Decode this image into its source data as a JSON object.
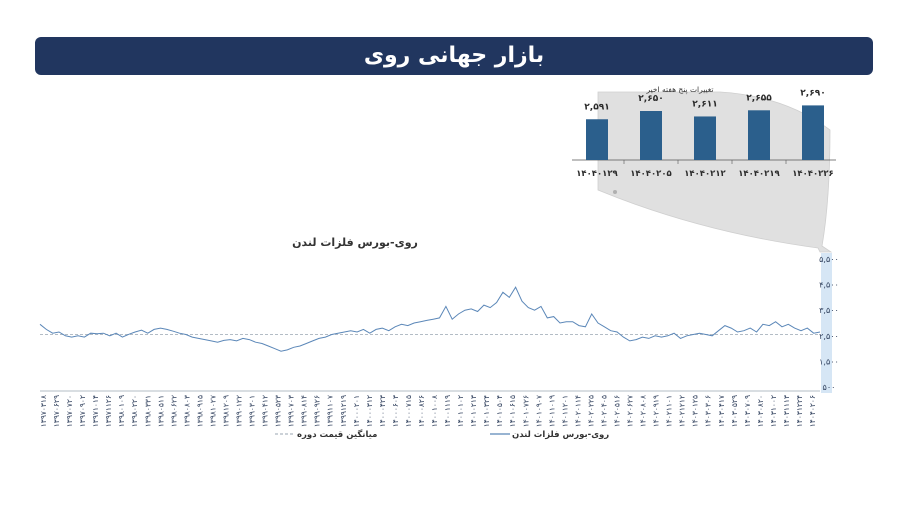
{
  "header": {
    "title": "بازار جهانی روی"
  },
  "inset": {
    "title": "تغییرات پنج هفته اخیر",
    "bar_color": "#2b5f8c",
    "background_color": "#e0e0e0"
  },
  "main_chart": {
    "title": "روی-بورس فلزات لندن",
    "line_color": "#5b87b8",
    "avg_color": "#9aa6b2",
    "legend": {
      "series_label": "روی-بورس فلزات لندن",
      "avg_label": "میانگین قیمت دوره"
    }
  },
  "chart_data": [
    {
      "type": "bar",
      "title": "تغییرات پنج هفته اخیر",
      "categories": [
        "۱۴۰۴۰۱۲۹",
        "۱۴۰۴۰۲۰۵",
        "۱۴۰۴۰۲۱۲",
        "۱۴۰۴۰۲۱۹",
        "۱۴۰۴۰۲۲۶"
      ],
      "values": [
        2591,
        2650,
        2611,
        2655,
        2690
      ],
      "value_labels": [
        "۲,۵۹۱",
        "۲,۶۵۰",
        "۲,۶۱۱",
        "۲,۶۵۵",
        "۲,۶۹۰"
      ],
      "ylim": [
        2300,
        2700
      ]
    },
    {
      "type": "line",
      "title": "روی-بورس فلزات لندن",
      "ylim": [
        500,
        5500
      ],
      "yticks": [
        500,
        1500,
        2500,
        3500,
        4500,
        5500
      ],
      "ytick_labels": [
        "۵۰۰",
        "۱,۵۰۰",
        "۲,۵۰۰",
        "۳,۵۰۰",
        "۴,۵۰۰",
        "۵,۵۰۰"
      ],
      "x_tick_labels": [
        "۱۳۹۷۰۳۱۸",
        "۱۳۹۷۰۶۲۹",
        "۱۳۹۷۰۷۲۰",
        "۱۳۹۷۰۹۰۲",
        "۱۳۹۷۱۰۱۴",
        "۱۳۹۷۱۱۲۶",
        "۱۳۹۸۰۱۰۹",
        "۱۳۹۸۰۲۲۰",
        "۱۳۹۸۰۳۳۱",
        "۱۳۹۸۰۵۱۱",
        "۱۳۹۸۰۶۲۲",
        "۱۳۹۸۰۸۰۳",
        "۱۳۹۸۰۹۱۵",
        "۱۳۹۸۱۰۲۷",
        "۱۳۹۸۱۲۰۹",
        "۱۳۹۹۰۱۲۲",
        "۱۳۹۹۰۳۰۱",
        "۱۳۹۹۰۴۱۲",
        "۱۳۹۹۰۵۲۳",
        "۱۳۹۹۰۷۰۳",
        "۱۳۹۹۰۸۱۴",
        "۱۳۹۹۰۹۲۶",
        "۱۳۹۹۱۱۰۷",
        "۱۳۹۹۱۲۱۹",
        "۱۴۰۰۰۲۰۱",
        "۱۴۰۰۰۳۱۲",
        "۱۴۰۰۰۴۲۳",
        "۱۴۰۰۰۶۰۳",
        "۱۴۰۰۰۷۱۵",
        "۱۴۰۰۰۸۲۶",
        "۱۴۰۰۱۰۰۸",
        "۱۴۰۰۱۱۱۹",
        "۱۴۰۱۰۱۰۲",
        "۱۴۰۱۰۲۱۳",
        "۱۴۰۱۰۳۲۴",
        "۱۴۰۱۰۵۰۴",
        "۱۴۰۱۰۶۱۵",
        "۱۴۰۱۰۷۲۶",
        "۱۴۰۱۰۹۰۷",
        "۱۴۰۱۱۰۱۹",
        "۱۴۰۱۱۲۰۱",
        "۱۴۰۲۰۱۱۴",
        "۱۴۰۲۰۲۲۵",
        "۱۴۰۲۰۴۰۵",
        "۱۴۰۲۰۵۱۶",
        "۱۴۰۲۰۶۲۷",
        "۱۴۰۲۰۸۰۸",
        "۱۴۰۲۰۹۱۹",
        "۱۴۰۲۱۱۰۱",
        "۱۴۰۲۱۲۱۲",
        "۱۴۰۳۰۱۲۵",
        "۱۴۰۳۰۳۰۶",
        "۱۴۰۳۰۴۱۷",
        "۱۴۰۳۰۵۲۹",
        "۱۴۰۳۰۷۰۹",
        "۱۴۰۳۰۸۲۰",
        "۱۴۰۳۱۰۰۲",
        "۱۴۰۳۱۱۱۳",
        "۱۴۰۳۱۲۲۴",
        "۱۴۰۴۰۲۰۶"
      ],
      "avg_value": 2550,
      "series": [
        {
          "values": [
            2950,
            2750,
            2600,
            2650,
            2500,
            2450,
            2500,
            2450,
            2600,
            2580,
            2600,
            2500,
            2600,
            2450,
            2560,
            2650,
            2720,
            2600,
            2750,
            2800,
            2750,
            2680,
            2600,
            2550,
            2450,
            2400,
            2350,
            2300,
            2250,
            2320,
            2350,
            2300,
            2400,
            2350,
            2250,
            2200,
            2100,
            2000,
            1900,
            1950,
            2050,
            2100,
            2200,
            2300,
            2400,
            2450,
            2550,
            2600,
            2650,
            2700,
            2650,
            2750,
            2600,
            2750,
            2800,
            2700,
            2850,
            2950,
            2900,
            3000,
            3050,
            3100,
            3150,
            3200,
            3650,
            3150,
            3350,
            3500,
            3550,
            3450,
            3700,
            3600,
            3800,
            4200,
            4000,
            4400,
            3850,
            3600,
            3500,
            3650,
            3200,
            3250,
            3000,
            3050,
            3050,
            2900,
            2850,
            3350,
            3000,
            2850,
            2700,
            2650,
            2450,
            2300,
            2350,
            2450,
            2400,
            2500,
            2450,
            2500,
            2600,
            2400,
            2500,
            2550,
            2600,
            2550,
            2500,
            2700,
            2900,
            2800,
            2650,
            2700,
            2800,
            2650,
            2950,
            2900,
            3050,
            2850,
            2950,
            2800,
            2700,
            2800,
            2600,
            2650
          ]
        }
      ]
    }
  ]
}
